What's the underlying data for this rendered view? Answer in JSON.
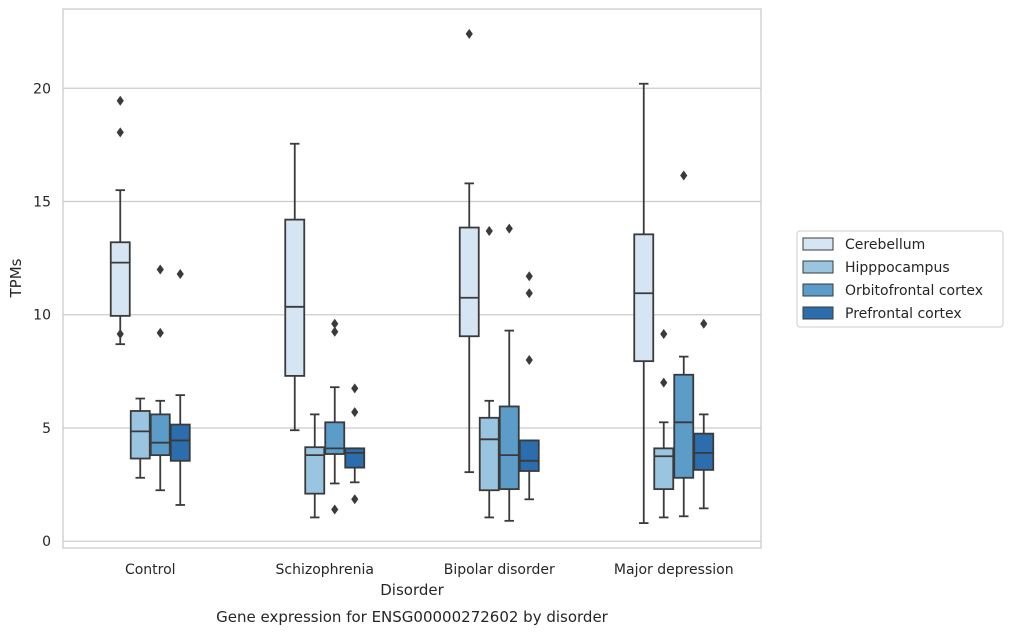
{
  "caption": "Gene expression for ENSG00000272602 by disorder",
  "chart_data": {
    "type": "box",
    "xlabel": "Disorder",
    "ylabel": "TPMs",
    "ylim": [
      -0.3,
      23.5
    ],
    "yticks": [
      0,
      5,
      10,
      15,
      20
    ],
    "grid": "horizontal",
    "legend_position": "right",
    "categories": [
      "Control",
      "Schizophrenia",
      "Bipolar disorder",
      "Major depression"
    ],
    "series": [
      {
        "name": "Cerebellum",
        "color": "#d6e5f4",
        "boxes": [
          {
            "whislo": 8.7,
            "q1": 9.95,
            "med": 12.3,
            "q3": 13.2,
            "whishi": 15.5,
            "fliers": [
              18.05,
              19.45,
              9.15
            ]
          },
          {
            "whislo": 4.9,
            "q1": 7.3,
            "med": 10.35,
            "q3": 14.2,
            "whishi": 17.55,
            "fliers": []
          },
          {
            "whislo": 3.05,
            "q1": 9.05,
            "med": 10.75,
            "q3": 13.85,
            "whishi": 15.8,
            "fliers": [
              22.4
            ]
          },
          {
            "whislo": 0.8,
            "q1": 7.95,
            "med": 10.95,
            "q3": 13.55,
            "whishi": 20.2,
            "fliers": []
          }
        ]
      },
      {
        "name": "Hipppocampus",
        "color": "#9ac5e0",
        "boxes": [
          {
            "whislo": 2.8,
            "q1": 3.65,
            "med": 4.85,
            "q3": 5.75,
            "whishi": 6.3,
            "fliers": []
          },
          {
            "whislo": 1.05,
            "q1": 2.1,
            "med": 3.8,
            "q3": 4.15,
            "whishi": 5.6,
            "fliers": []
          },
          {
            "whislo": 1.05,
            "q1": 2.25,
            "med": 4.5,
            "q3": 5.45,
            "whishi": 6.2,
            "fliers": [
              13.7
            ]
          },
          {
            "whislo": 1.05,
            "q1": 2.3,
            "med": 3.75,
            "q3": 4.1,
            "whishi": 5.25,
            "fliers": [
              7.0,
              9.15
            ]
          }
        ]
      },
      {
        "name": "Orbitofrontal cortex",
        "color": "#5b9cc9",
        "boxes": [
          {
            "whislo": 2.25,
            "q1": 3.8,
            "med": 4.35,
            "q3": 5.6,
            "whishi": 6.2,
            "fliers": [
              9.2,
              12.0
            ]
          },
          {
            "whislo": 2.55,
            "q1": 3.85,
            "med": 4.1,
            "q3": 5.25,
            "whishi": 6.8,
            "fliers": [
              1.4,
              9.25,
              9.6
            ]
          },
          {
            "whislo": 0.9,
            "q1": 2.3,
            "med": 3.8,
            "q3": 5.95,
            "whishi": 9.3,
            "fliers": [
              13.8
            ]
          },
          {
            "whislo": 1.1,
            "q1": 2.8,
            "med": 5.25,
            "q3": 7.35,
            "whishi": 8.15,
            "fliers": [
              16.15
            ]
          }
        ]
      },
      {
        "name": "Prefrontal cortex",
        "color": "#2c6ead",
        "boxes": [
          {
            "whislo": 1.6,
            "q1": 3.55,
            "med": 4.45,
            "q3": 5.15,
            "whishi": 6.45,
            "fliers": [
              11.8
            ]
          },
          {
            "whislo": 2.6,
            "q1": 3.25,
            "med": 3.9,
            "q3": 4.1,
            "whishi": 4.1,
            "fliers": [
              1.85,
              5.7,
              6.75
            ]
          },
          {
            "whislo": 1.85,
            "q1": 3.1,
            "med": 3.55,
            "q3": 4.45,
            "whishi": 4.45,
            "fliers": [
              8.0,
              10.95,
              11.7
            ]
          },
          {
            "whislo": 1.45,
            "q1": 3.15,
            "med": 3.9,
            "q3": 4.75,
            "whishi": 5.6,
            "fliers": [
              9.6
            ]
          }
        ]
      }
    ]
  }
}
